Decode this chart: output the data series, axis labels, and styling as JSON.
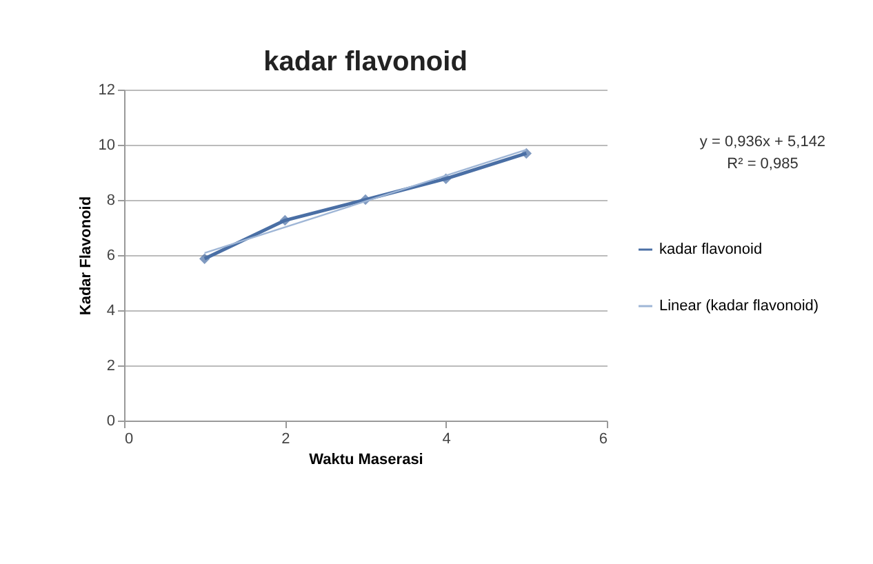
{
  "chart_data": {
    "type": "line",
    "title": "kadar flavonoid",
    "xlabel": "Waktu Maserasi",
    "ylabel": "Kadar Flavonoid",
    "x": [
      1,
      2,
      3,
      4,
      5
    ],
    "series": [
      {
        "name": "kadar flavonoid",
        "color": "#4a6fa5",
        "values": [
          5.87,
          7.26,
          8.01,
          8.77,
          9.69
        ],
        "marker": "diamond"
      },
      {
        "name": "Linear (kadar flavonoid)",
        "color": "#9fb6d6",
        "type": "line",
        "x": [
          1,
          5
        ],
        "values": [
          6.08,
          9.82
        ],
        "marker": "none"
      }
    ],
    "xlim": [
      0,
      6
    ],
    "xticks": [
      0,
      2,
      4,
      6
    ],
    "ylim": [
      0,
      12
    ],
    "yticks": [
      0,
      2,
      4,
      6,
      8,
      10,
      12
    ],
    "grid": "y",
    "legend": "right",
    "line_style": "solid",
    "annotations": [
      "y = 0,936x + 5,142",
      "R² = 0,985"
    ]
  }
}
